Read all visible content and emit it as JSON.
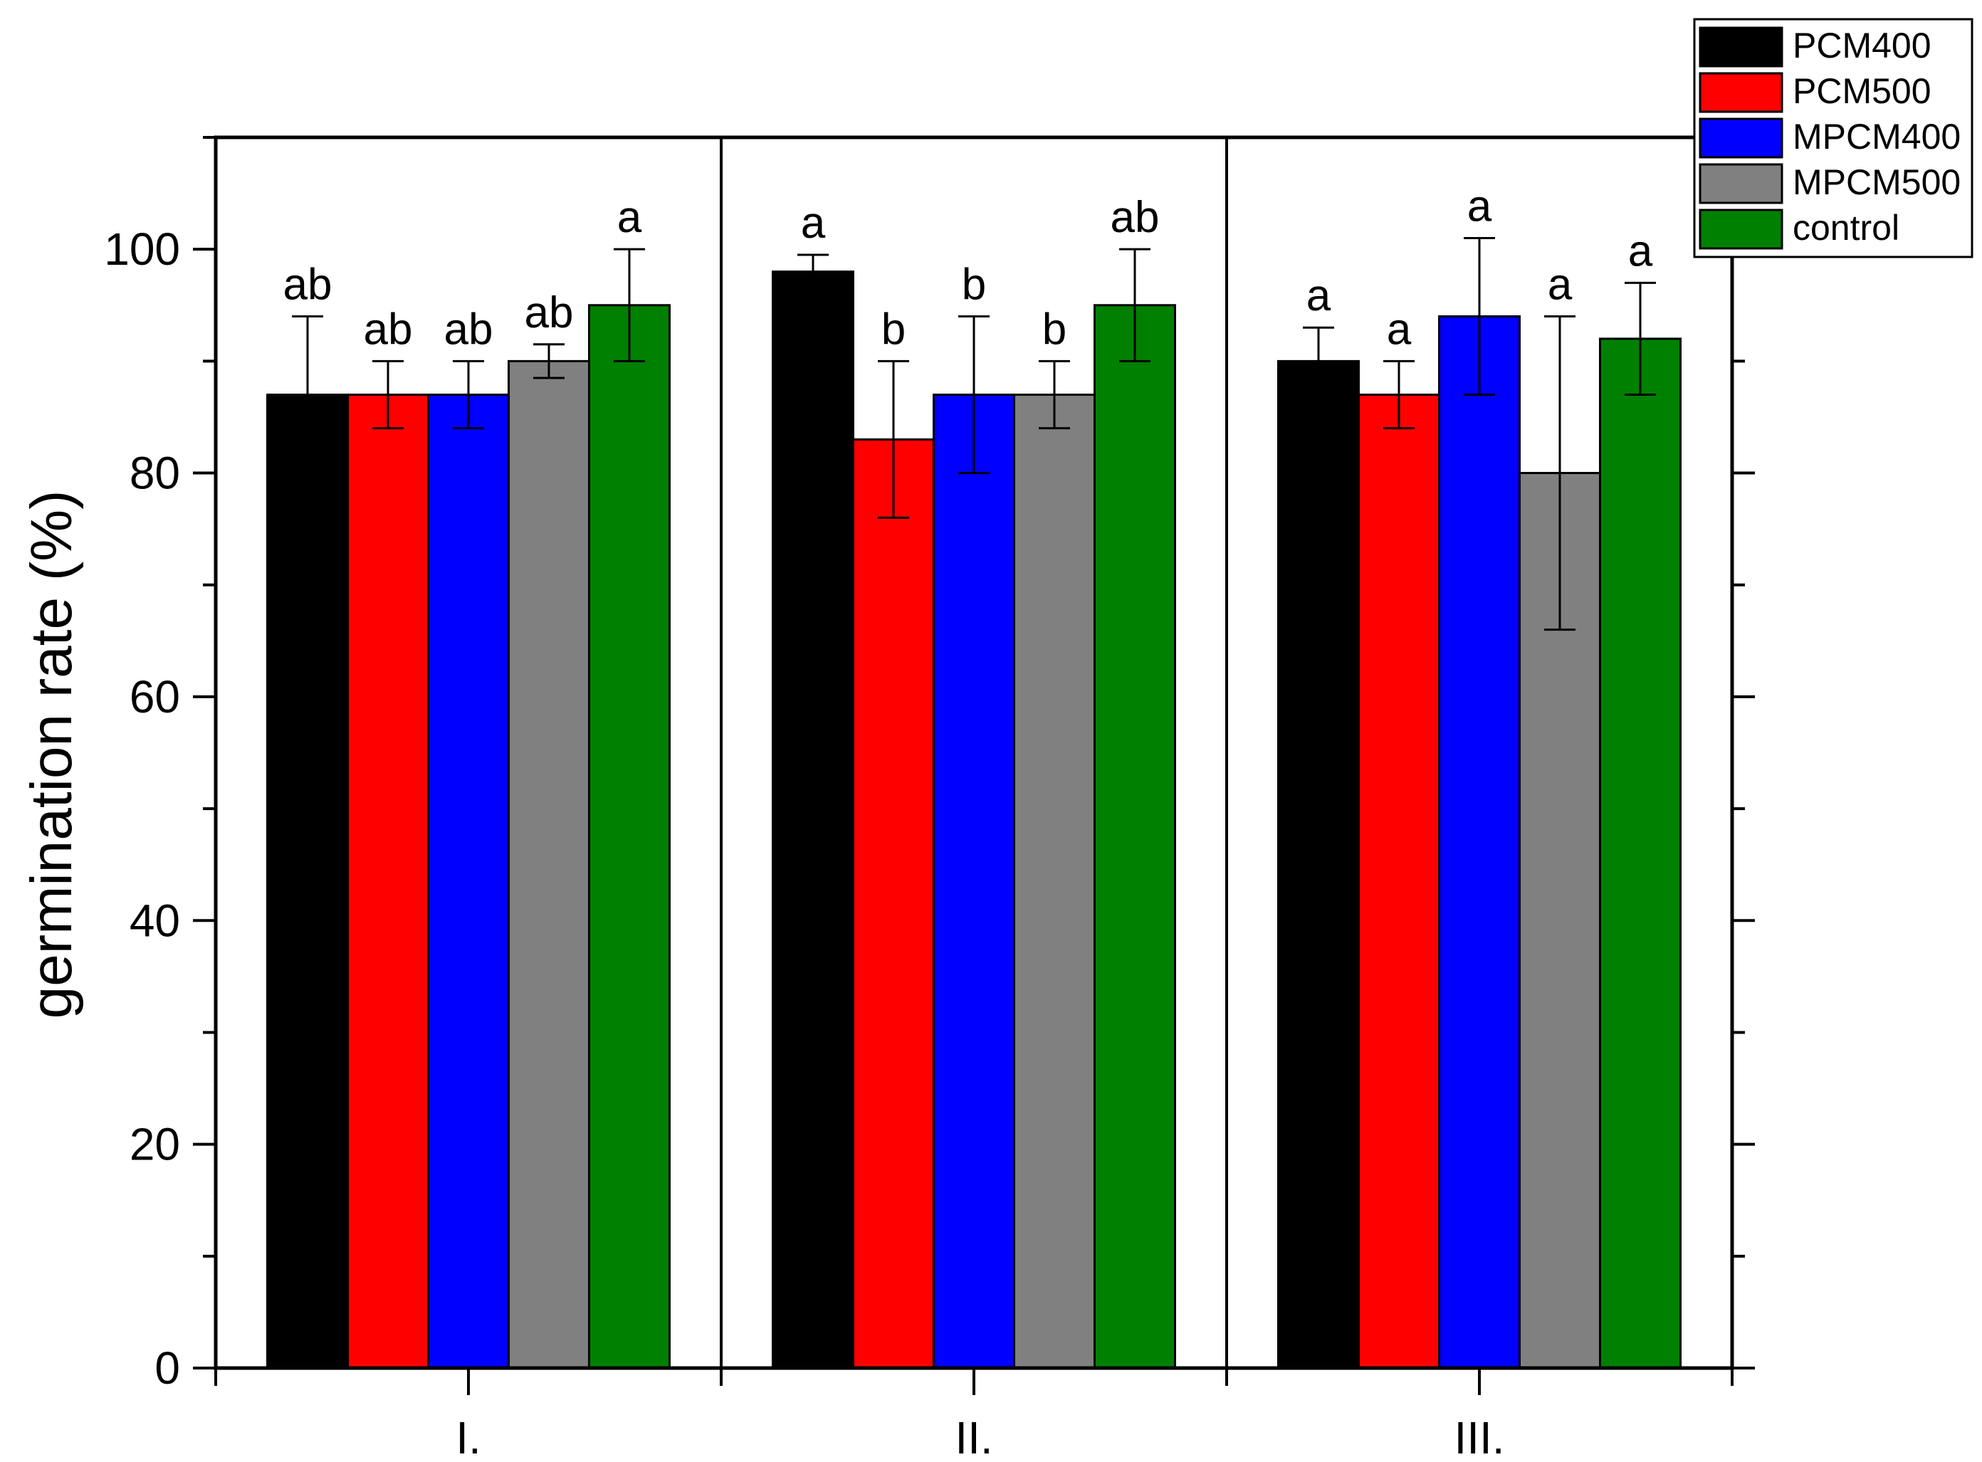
{
  "chart_data": {
    "type": "bar",
    "ylabel": "germination rate (%)",
    "xlabel": "",
    "ylim": [
      0,
      110
    ],
    "yticks": [
      0,
      20,
      40,
      60,
      80,
      100
    ],
    "categories": [
      "I.",
      "II.",
      "III."
    ],
    "legend_position": "top-right, outside plot",
    "series": [
      {
        "name": "PCM400",
        "color": "#000000",
        "values": [
          87,
          98,
          90
        ],
        "errors": [
          7,
          1.5,
          3
        ],
        "letters": [
          "ab",
          "a",
          "a"
        ]
      },
      {
        "name": "PCM500",
        "color": "#ff0000",
        "values": [
          87,
          83,
          87
        ],
        "errors": [
          3,
          7,
          3
        ],
        "letters": [
          "ab",
          "b",
          "a"
        ]
      },
      {
        "name": "MPCM400",
        "color": "#0000ff",
        "values": [
          87,
          87,
          94
        ],
        "errors": [
          3,
          7,
          7
        ],
        "letters": [
          "ab",
          "b",
          "a"
        ]
      },
      {
        "name": "MPCM500",
        "color": "#808080",
        "values": [
          90,
          87,
          80
        ],
        "errors": [
          1.5,
          3,
          14
        ],
        "letters": [
          "ab",
          "b",
          "a"
        ]
      },
      {
        "name": "control",
        "color": "#008000",
        "values": [
          95,
          95,
          92
        ],
        "errors": [
          5,
          5,
          5
        ],
        "letters": [
          "a",
          "ab",
          "a"
        ]
      }
    ]
  }
}
